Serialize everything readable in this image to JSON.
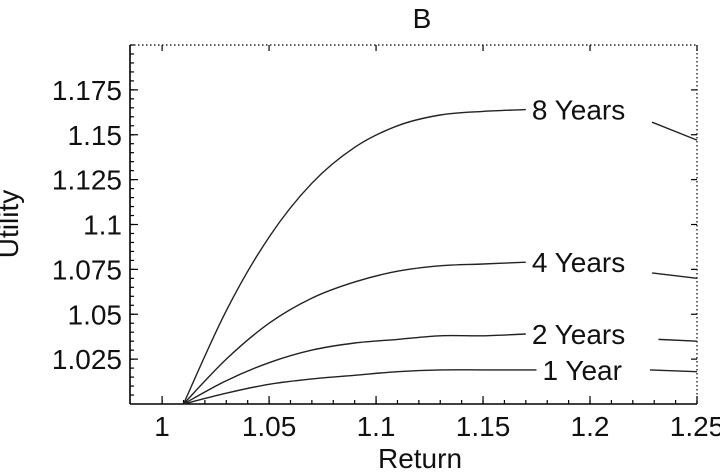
{
  "chart_data": {
    "type": "line",
    "title": "B",
    "xlabel": "Return",
    "ylabel": "Utility",
    "xlim": [
      0.985,
      1.25
    ],
    "ylim": [
      1.0,
      1.2
    ],
    "x_ticks": [
      1,
      1.05,
      1.1,
      1.15,
      1.2,
      1.25
    ],
    "x_tick_labels": [
      "1",
      "1.05",
      "1.1",
      "1.15",
      "1.2",
      "1.25"
    ],
    "y_ticks": [
      1.025,
      1.05,
      1.075,
      1.1,
      1.125,
      1.15,
      1.175
    ],
    "y_tick_labels": [
      "1.025",
      "1.05",
      "1.075",
      "1.1",
      "1.125",
      "1.15",
      "1.175"
    ],
    "grid": false,
    "legend": "inline labels at right",
    "series": [
      {
        "name": "8 Years",
        "x": [
          1.01,
          1.03,
          1.05,
          1.07,
          1.09,
          1.11,
          1.13,
          1.15,
          1.17
        ],
        "y": [
          1.0,
          1.052,
          1.093,
          1.123,
          1.143,
          1.155,
          1.161,
          1.163,
          1.164
        ],
        "tail": {
          "x": [
            1.229,
            1.25
          ],
          "y": [
            1.157,
            1.147
          ]
        }
      },
      {
        "name": "4 Years",
        "x": [
          1.01,
          1.03,
          1.05,
          1.07,
          1.09,
          1.11,
          1.13,
          1.15,
          1.17
        ],
        "y": [
          1.0,
          1.025,
          1.045,
          1.059,
          1.068,
          1.074,
          1.077,
          1.078,
          1.079
        ],
        "tail": {
          "x": [
            1.229,
            1.25
          ],
          "y": [
            1.073,
            1.07
          ]
        }
      },
      {
        "name": "2 Years",
        "x": [
          1.01,
          1.03,
          1.05,
          1.07,
          1.09,
          1.11,
          1.13,
          1.15,
          1.17
        ],
        "y": [
          1.0,
          1.013,
          1.023,
          1.03,
          1.034,
          1.036,
          1.038,
          1.038,
          1.039
        ],
        "tail": {
          "x": [
            1.232,
            1.25
          ],
          "y": [
            1.036,
            1.035
          ]
        }
      },
      {
        "name": "1 Year",
        "x": [
          1.01,
          1.03,
          1.05,
          1.07,
          1.09,
          1.11,
          1.13,
          1.15,
          1.17,
          1.175
        ],
        "y": [
          1.0,
          1.006,
          1.011,
          1.014,
          1.016,
          1.018,
          1.019,
          1.019,
          1.019,
          1.019
        ],
        "tail": {
          "x": [
            1.228,
            1.25
          ],
          "y": [
            1.019,
            1.018
          ]
        }
      }
    ]
  }
}
